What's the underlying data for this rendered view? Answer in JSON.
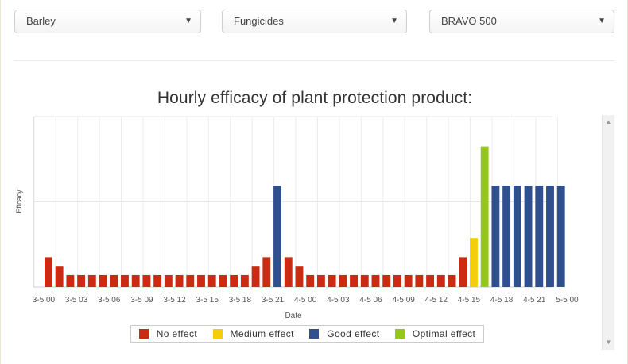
{
  "filters": {
    "crop": "Barley",
    "category": "Fungicides",
    "product": "BRAVO 500"
  },
  "chart_data": {
    "type": "bar",
    "title": "Hourly efficacy of plant protection product:",
    "xlabel": "Date",
    "ylabel": "Effcacy",
    "ylim": [
      0,
      4
    ],
    "grid": true,
    "legend_position": "bottom",
    "tick_labels": [
      "3-5 00",
      "3-5 03",
      "3-5 06",
      "3-5 09",
      "3-5 12",
      "3-5 15",
      "3-5 18",
      "3-5 21",
      "4-5 00",
      "4-5 03",
      "4-5 06",
      "4-5 09",
      "4-5 12",
      "4-5 15",
      "4-5 18",
      "4-5 21",
      "5-5 00"
    ],
    "categories": [
      "3-5 00",
      "3-5 01",
      "3-5 02",
      "3-5 03",
      "3-5 04",
      "3-5 05",
      "3-5 06",
      "3-5 07",
      "3-5 08",
      "3-5 09",
      "3-5 10",
      "3-5 11",
      "3-5 12",
      "3-5 13",
      "3-5 14",
      "3-5 15",
      "3-5 16",
      "3-5 17",
      "3-5 18",
      "3-5 19",
      "3-5 20",
      "3-5 21",
      "3-5 22",
      "3-5 23",
      "4-5 00",
      "4-5 01",
      "4-5 02",
      "4-5 03",
      "4-5 04",
      "4-5 05",
      "4-5 06",
      "4-5 07",
      "4-5 08",
      "4-5 09",
      "4-5 10",
      "4-5 11",
      "4-5 12",
      "4-5 13",
      "4-5 14",
      "4-5 15",
      "4-5 16",
      "4-5 17",
      "4-5 18",
      "4-5 19",
      "4-5 20",
      "4-5 21",
      "4-5 22",
      "4-5 23"
    ],
    "values": [
      0.7,
      0.48,
      0.28,
      0.28,
      0.28,
      0.28,
      0.28,
      0.28,
      0.28,
      0.28,
      0.28,
      0.28,
      0.28,
      0.28,
      0.28,
      0.28,
      0.28,
      0.28,
      0.28,
      0.48,
      0.7,
      2.38,
      0.7,
      0.48,
      0.28,
      0.28,
      0.28,
      0.28,
      0.28,
      0.28,
      0.28,
      0.28,
      0.28,
      0.28,
      0.28,
      0.28,
      0.28,
      0.28,
      0.7,
      1.15,
      3.3,
      2.38,
      2.38,
      2.38,
      2.38,
      2.38,
      2.38,
      2.38
    ],
    "effect_level": [
      0,
      0,
      0,
      0,
      0,
      0,
      0,
      0,
      0,
      0,
      0,
      0,
      0,
      0,
      0,
      0,
      0,
      0,
      0,
      0,
      0,
      2,
      0,
      0,
      0,
      0,
      0,
      0,
      0,
      0,
      0,
      0,
      0,
      0,
      0,
      0,
      0,
      0,
      0,
      1,
      3,
      2,
      2,
      2,
      2,
      2,
      2,
      2
    ],
    "legend": [
      {
        "label": "No effect",
        "color": "#cc2a12"
      },
      {
        "label": "Medium effect",
        "color": "#f4cd0c"
      },
      {
        "label": "Good effect",
        "color": "#2f4f8f"
      },
      {
        "label": "Optimal effect",
        "color": "#95c61a"
      }
    ]
  }
}
